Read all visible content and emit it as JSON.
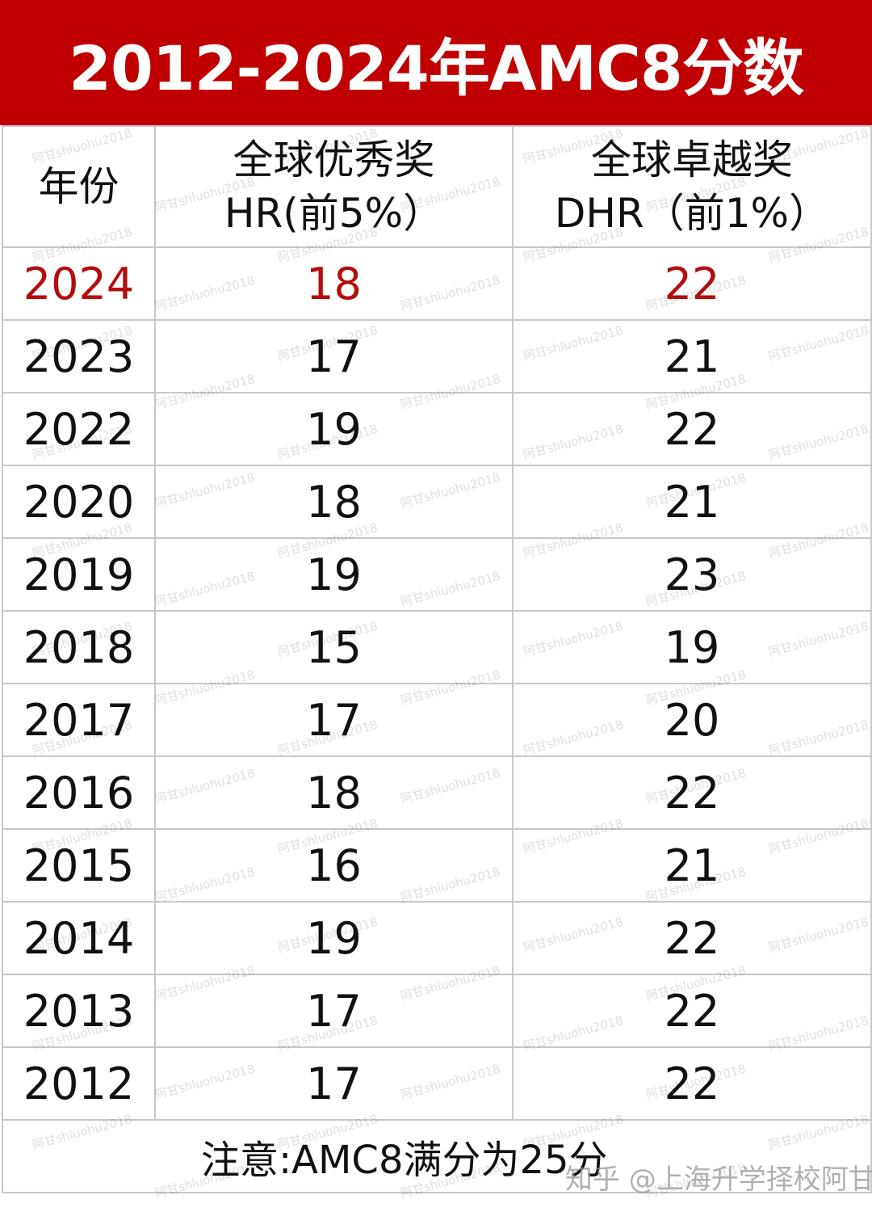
{
  "title": "2012-2024年AMC8分数",
  "headers": {
    "year": "年份",
    "hr_line1": "全球优秀奖",
    "hr_line2": "HR(前5%）",
    "dhr_line1": "全球卓越奖",
    "dhr_line2": "DHR（前1%）"
  },
  "rows": [
    {
      "year": "2024",
      "hr": "18",
      "dhr": "22",
      "highlight": true
    },
    {
      "year": "2023",
      "hr": "17",
      "dhr": "21"
    },
    {
      "year": "2022",
      "hr": "19",
      "dhr": "22"
    },
    {
      "year": "2020",
      "hr": "18",
      "dhr": "21"
    },
    {
      "year": "2019",
      "hr": "19",
      "dhr": "23"
    },
    {
      "year": "2018",
      "hr": "15",
      "dhr": "19"
    },
    {
      "year": "2017",
      "hr": "17",
      "dhr": "20"
    },
    {
      "year": "2016",
      "hr": "18",
      "dhr": "22"
    },
    {
      "year": "2015",
      "hr": "16",
      "dhr": "21"
    },
    {
      "year": "2014",
      "hr": "19",
      "dhr": "22"
    },
    {
      "year": "2013",
      "hr": "17",
      "dhr": "22"
    },
    {
      "year": "2012",
      "hr": "17",
      "dhr": "22"
    }
  ],
  "footer_note": "注意:AMC8满分为25分",
  "watermark": "阿甘shluohu2018",
  "source_watermark": "知乎 @上海升学择校阿甘",
  "colors": {
    "title_bg": "#c00000",
    "highlight": "#b50d0d",
    "grid": "#c8c8c8"
  }
}
